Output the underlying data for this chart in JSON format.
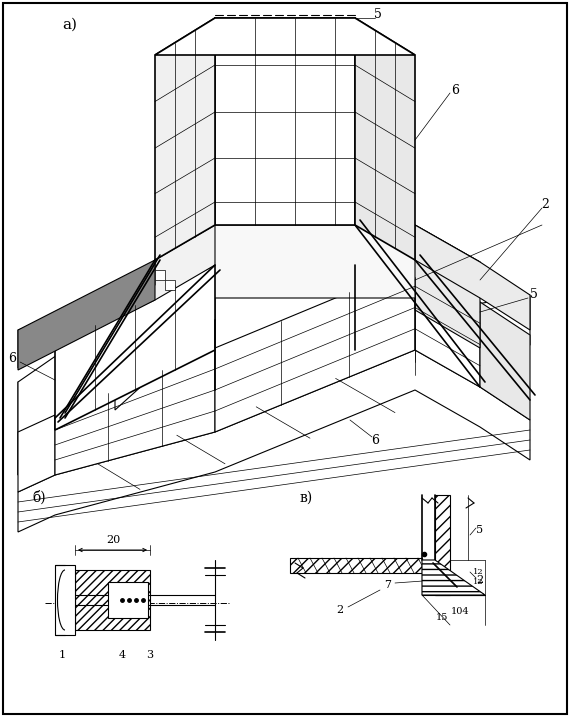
{
  "bg_color": "#ffffff",
  "line_color": "#000000",
  "label_a": "а)",
  "label_b": "б)",
  "label_c": "в)"
}
